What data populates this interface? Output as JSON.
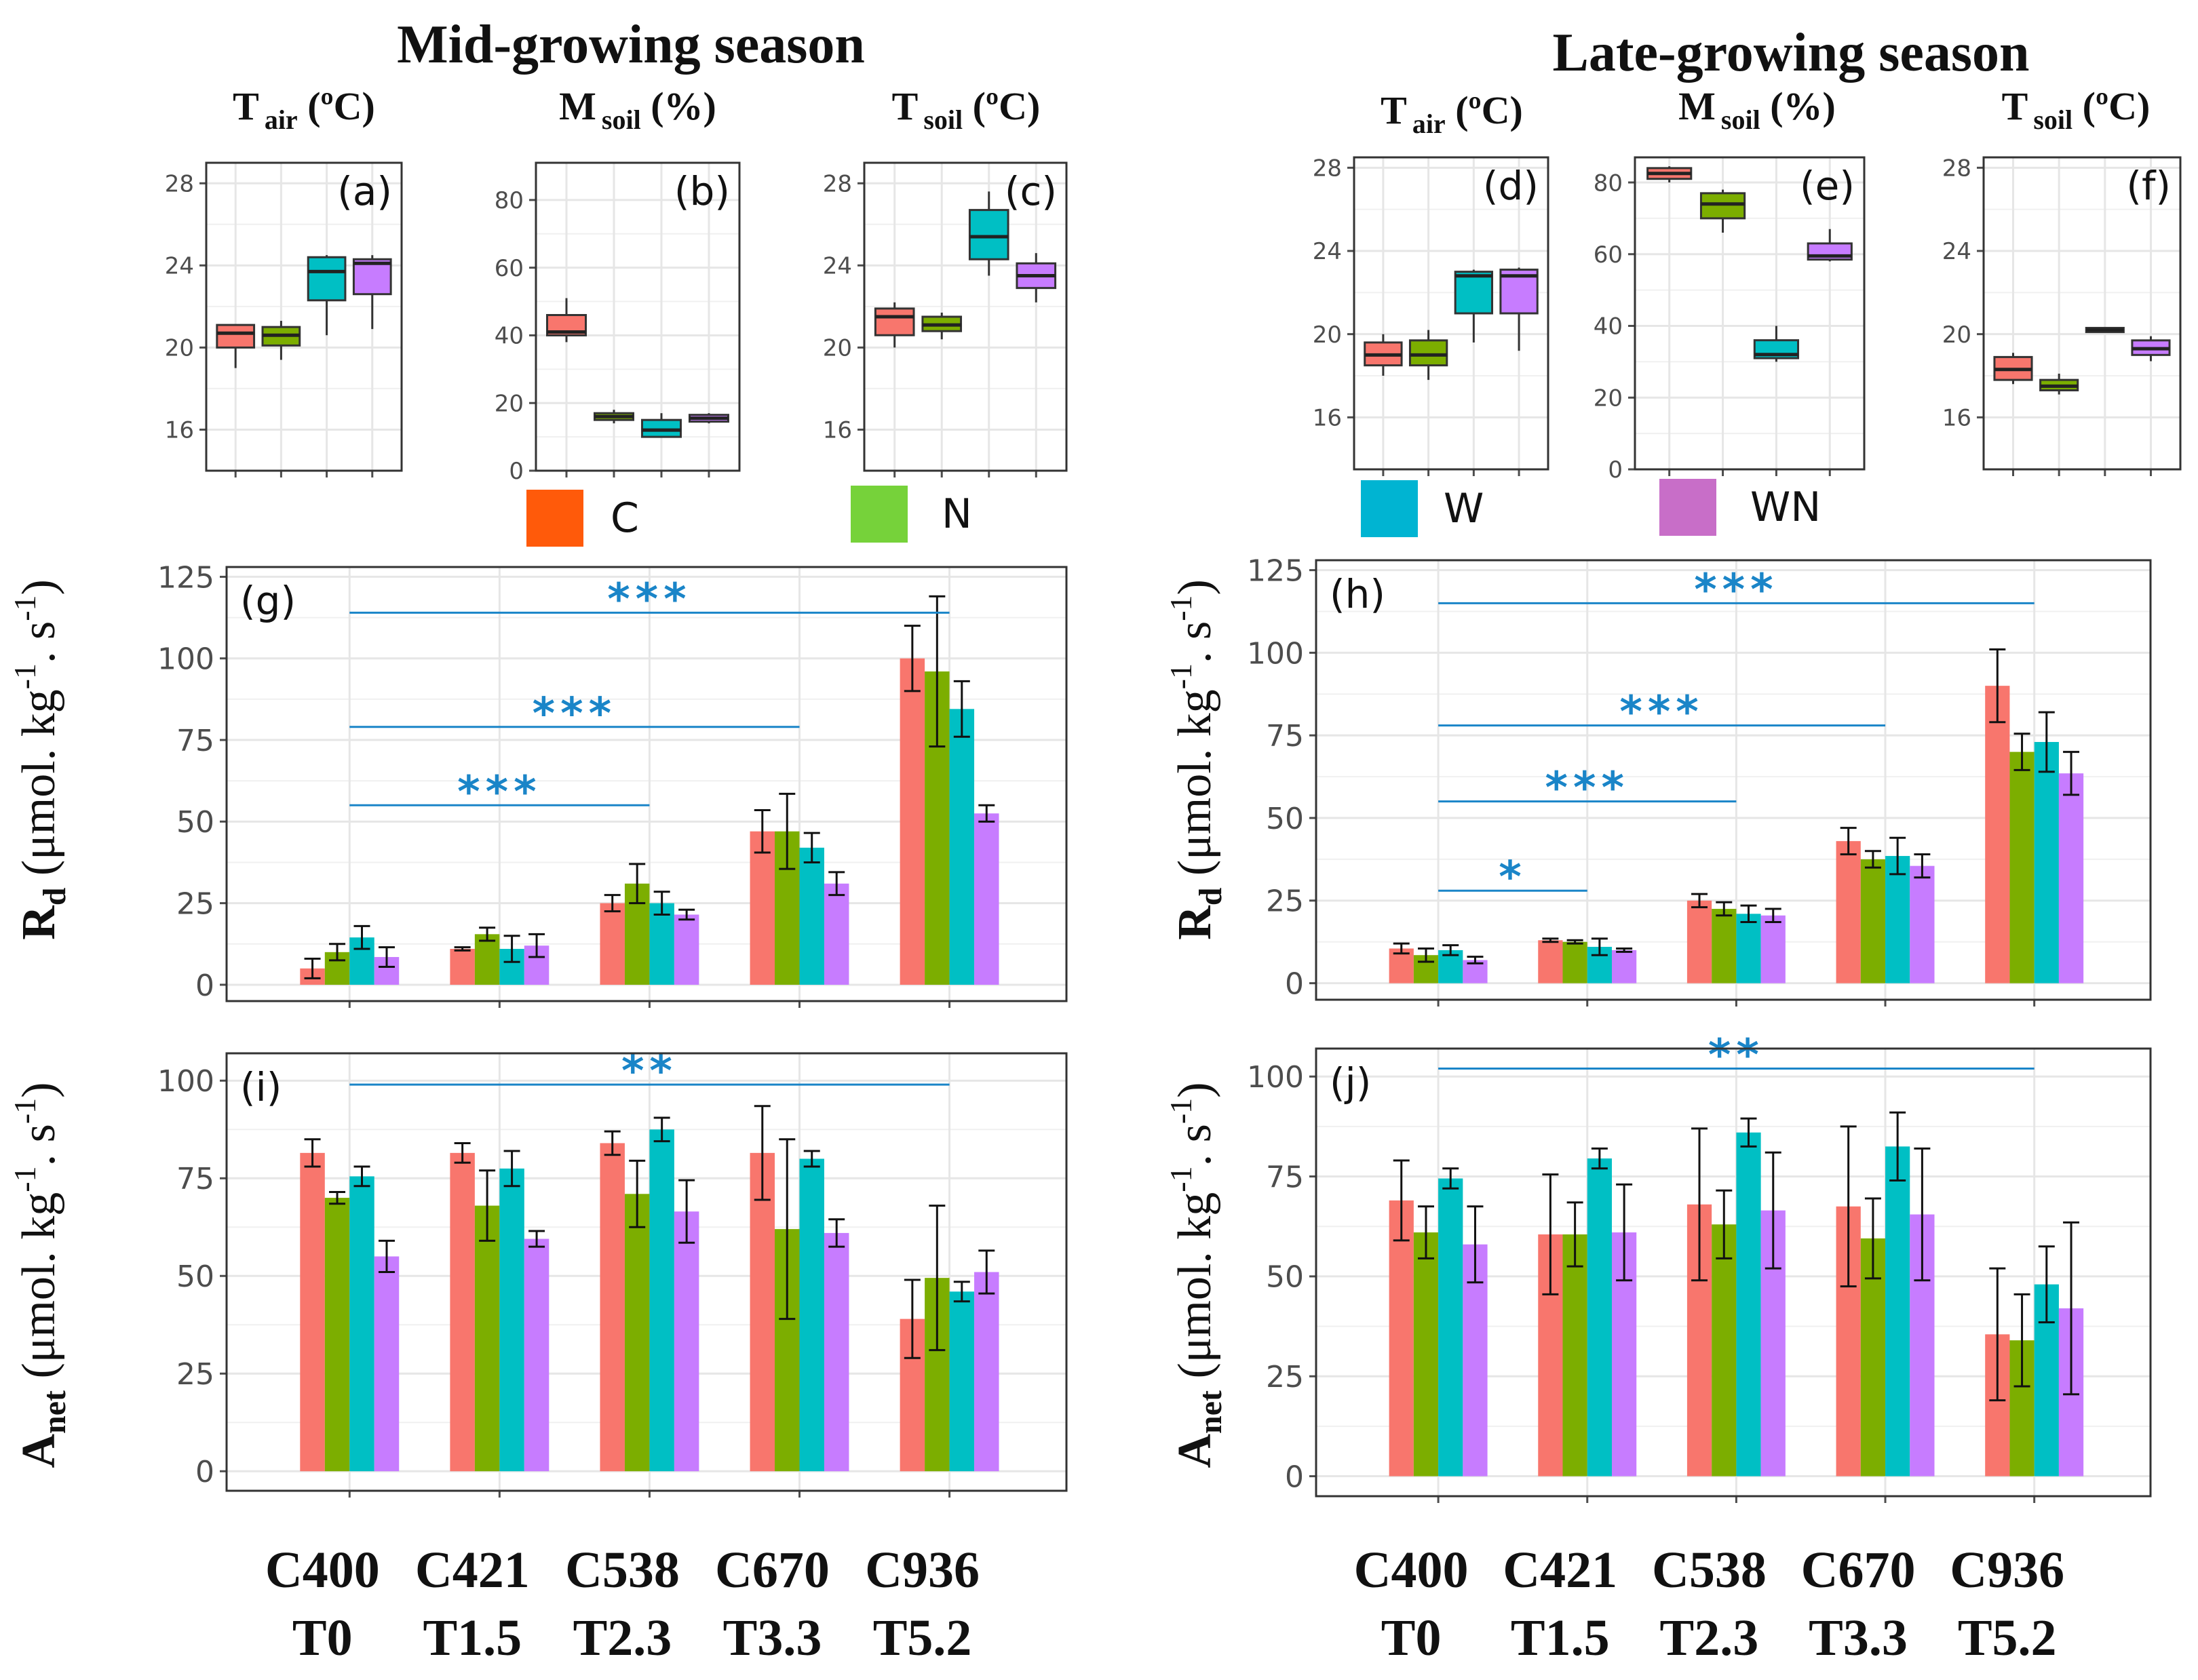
{
  "colors": {
    "C": "#f8766d",
    "N": "#7cae00",
    "W": "#00bfc4",
    "WN": "#c77cff",
    "legend_C": "#ff5a0a",
    "legend_N": "#76d23a",
    "legend_W": "#00b4d2",
    "legend_WN": "#c86ec8",
    "sig": "#1a85c8",
    "grid": "#e6e6e6",
    "axis": "#4d4d4d",
    "tick_label": "#4d4d4d"
  },
  "titles": {
    "mid": "Mid-growing season",
    "late": "Late-growing season"
  },
  "panel_headers": {
    "tair": {
      "main": "T",
      "sub": "air",
      "unit": " (ºC)"
    },
    "msoil": {
      "main": "M",
      "sub": "soil",
      "unit": " (%)"
    },
    "tsoil": {
      "main": "T",
      "sub": "soil",
      "unit": " (ºC)"
    }
  },
  "legend": [
    {
      "key": "C",
      "label": "C"
    },
    {
      "key": "N",
      "label": "N"
    },
    {
      "key": "W",
      "label": "W"
    },
    {
      "key": "WN",
      "label": "WN"
    }
  ],
  "y_labels": {
    "rd": {
      "main": "R",
      "sub": "d",
      "rest": " (μmol. kg",
      "sup1": "-1",
      "mid": ". s",
      "sup2": "-1",
      "end": ")"
    },
    "anet": {
      "main": "A",
      "sub": "net",
      "rest": " (μmol. kg",
      "sup1": "-1",
      "mid": ". s",
      "sup2": "-1",
      "end": ")"
    }
  },
  "x_categories": [
    {
      "line1": "C400",
      "line2": "T0"
    },
    {
      "line1": "C421",
      "line2": "T1.5"
    },
    {
      "line1": "C538",
      "line2": "T2.3"
    },
    {
      "line1": "C670",
      "line2": "T3.3"
    },
    {
      "line1": "C936",
      "line2": "T5.2"
    }
  ],
  "chart_data": [
    {
      "id": "a",
      "type": "box",
      "label": "(a)",
      "ylim": [
        14,
        29
      ],
      "ticks": [
        16,
        20,
        24,
        28
      ],
      "series": [
        {
          "key": "C",
          "q1": 20.0,
          "median": 20.7,
          "q3": 21.1,
          "lo": 19.0,
          "hi": 21.1
        },
        {
          "key": "N",
          "q1": 20.1,
          "median": 20.6,
          "q3": 21.0,
          "lo": 19.4,
          "hi": 21.3
        },
        {
          "key": "W",
          "q1": 22.3,
          "median": 23.7,
          "q3": 24.4,
          "lo": 20.6,
          "hi": 24.5
        },
        {
          "key": "WN",
          "q1": 22.6,
          "median": 24.1,
          "q3": 24.3,
          "lo": 20.9,
          "hi": 24.5
        }
      ]
    },
    {
      "id": "b",
      "type": "box",
      "label": "(b)",
      "ylim": [
        0,
        91
      ],
      "ticks": [
        0,
        20,
        40,
        60,
        80
      ],
      "series": [
        {
          "key": "C",
          "q1": 40,
          "median": 41,
          "q3": 46,
          "lo": 38,
          "hi": 51
        },
        {
          "key": "N",
          "q1": 15,
          "median": 16,
          "q3": 17,
          "lo": 14,
          "hi": 18
        },
        {
          "key": "W",
          "q1": 10,
          "median": 12,
          "q3": 15,
          "lo": 10,
          "hi": 17
        },
        {
          "key": "WN",
          "q1": 14.5,
          "median": 15.5,
          "q3": 16.5,
          "lo": 14,
          "hi": 17
        }
      ]
    },
    {
      "id": "c",
      "type": "box",
      "label": "(c)",
      "ylim": [
        14,
        29
      ],
      "ticks": [
        16,
        20,
        24,
        28
      ],
      "series": [
        {
          "key": "C",
          "q1": 20.6,
          "median": 21.5,
          "q3": 21.9,
          "lo": 20.0,
          "hi": 22.2
        },
        {
          "key": "N",
          "q1": 20.8,
          "median": 21.1,
          "q3": 21.5,
          "lo": 20.4,
          "hi": 21.7
        },
        {
          "key": "W",
          "q1": 24.3,
          "median": 25.4,
          "q3": 26.7,
          "lo": 23.5,
          "hi": 27.6
        },
        {
          "key": "WN",
          "q1": 22.9,
          "median": 23.5,
          "q3": 24.1,
          "lo": 22.2,
          "hi": 24.6
        }
      ]
    },
    {
      "id": "d",
      "type": "box",
      "label": "(d)",
      "ylim": [
        13.5,
        28.5
      ],
      "ticks": [
        16,
        20,
        24,
        28
      ],
      "series": [
        {
          "key": "C",
          "q1": 18.5,
          "median": 19.0,
          "q3": 19.6,
          "lo": 18.0,
          "hi": 20.0
        },
        {
          "key": "N",
          "q1": 18.5,
          "median": 19.0,
          "q3": 19.7,
          "lo": 17.8,
          "hi": 20.2
        },
        {
          "key": "W",
          "q1": 21.0,
          "median": 22.8,
          "q3": 23.0,
          "lo": 19.6,
          "hi": 23.1
        },
        {
          "key": "WN",
          "q1": 21.0,
          "median": 22.8,
          "q3": 23.1,
          "lo": 19.2,
          "hi": 23.2
        }
      ]
    },
    {
      "id": "e",
      "type": "box",
      "label": "(e)",
      "ylim": [
        0,
        87
      ],
      "ticks": [
        0,
        20,
        40,
        60,
        80
      ],
      "series": [
        {
          "key": "C",
          "q1": 81,
          "median": 82.5,
          "q3": 84,
          "lo": 80,
          "hi": 84.5
        },
        {
          "key": "N",
          "q1": 70,
          "median": 74,
          "q3": 77,
          "lo": 66,
          "hi": 78
        },
        {
          "key": "W",
          "q1": 31,
          "median": 32,
          "q3": 36,
          "lo": 30,
          "hi": 40
        },
        {
          "key": "WN",
          "q1": 58.5,
          "median": 59.5,
          "q3": 63,
          "lo": 58,
          "hi": 67
        }
      ]
    },
    {
      "id": "f",
      "type": "box",
      "label": "(f)",
      "ylim": [
        13.5,
        28.5
      ],
      "ticks": [
        16,
        20,
        24,
        28
      ],
      "series": [
        {
          "key": "C",
          "q1": 17.8,
          "median": 18.3,
          "q3": 18.9,
          "lo": 17.6,
          "hi": 19.1
        },
        {
          "key": "N",
          "q1": 17.3,
          "median": 17.5,
          "q3": 17.8,
          "lo": 17.1,
          "hi": 18.1
        },
        {
          "key": "W",
          "q1": 20.1,
          "median": 20.2,
          "q3": 20.3,
          "lo": 20.1,
          "hi": 20.3
        },
        {
          "key": "WN",
          "q1": 19.0,
          "median": 19.3,
          "q3": 19.7,
          "lo": 18.7,
          "hi": 19.9
        }
      ]
    },
    {
      "id": "g",
      "type": "bar",
      "label": "(g)",
      "ylim": [
        -5,
        128
      ],
      "ticks": [
        0,
        25,
        50,
        75,
        100,
        125
      ],
      "categories": [
        "C400 T0",
        "C421 T1.5",
        "C538 T2.3",
        "C670 T3.3",
        "C936 T5.2"
      ],
      "series": [
        {
          "key": "C",
          "values": [
            5,
            11,
            25,
            47,
            100
          ],
          "errors": [
            3,
            0.5,
            2.5,
            6.5,
            10
          ]
        },
        {
          "key": "N",
          "values": [
            10,
            15.5,
            31,
            47,
            96
          ],
          "errors": [
            2.5,
            2,
            6,
            11.5,
            23
          ]
        },
        {
          "key": "W",
          "values": [
            14.5,
            11,
            25,
            42,
            84.5
          ],
          "errors": [
            3.5,
            4,
            3.5,
            4.5,
            8.5
          ]
        },
        {
          "key": "WN",
          "values": [
            8.5,
            12,
            21.5,
            31,
            52.5
          ],
          "errors": [
            3,
            3.5,
            1.5,
            3.5,
            2.5
          ]
        }
      ],
      "significance": [
        {
          "label": "***",
          "y": 114,
          "from": 0,
          "to": 4
        },
        {
          "label": "***",
          "y": 79,
          "from": 0,
          "to": 3
        },
        {
          "label": "***",
          "y": 55,
          "from": 0,
          "to": 2
        }
      ]
    },
    {
      "id": "h",
      "type": "bar",
      "label": "(h)",
      "ylim": [
        -5,
        128
      ],
      "ticks": [
        0,
        25,
        50,
        75,
        100,
        125
      ],
      "categories": [
        "C400 T0",
        "C421 T1.5",
        "C538 T2.3",
        "C670 T3.3",
        "C936 T5.2"
      ],
      "series": [
        {
          "key": "C",
          "values": [
            10.5,
            13,
            25,
            43,
            90
          ],
          "errors": [
            1.5,
            0.5,
            2,
            4,
            11
          ]
        },
        {
          "key": "N",
          "values": [
            8.5,
            12.5,
            22.5,
            37.5,
            70
          ],
          "errors": [
            2,
            0.5,
            2,
            2.5,
            5.5
          ]
        },
        {
          "key": "W",
          "values": [
            10,
            11,
            21,
            38.5,
            73
          ],
          "errors": [
            1.5,
            2.5,
            2.5,
            5.5,
            9
          ]
        },
        {
          "key": "WN",
          "values": [
            7,
            10,
            20.5,
            35.5,
            63.5
          ],
          "errors": [
            1,
            0.5,
            2,
            3.5,
            6.5
          ]
        }
      ],
      "significance": [
        {
          "label": "***",
          "y": 115,
          "from": 0,
          "to": 4
        },
        {
          "label": "***",
          "y": 78,
          "from": 0,
          "to": 3
        },
        {
          "label": "***",
          "y": 55,
          "from": 0,
          "to": 2
        },
        {
          "label": "*",
          "y": 28,
          "from": 0,
          "to": 1
        }
      ]
    },
    {
      "id": "i",
      "type": "bar",
      "label": "(i)",
      "ylim": [
        -5,
        107
      ],
      "ticks": [
        0,
        25,
        50,
        75,
        100
      ],
      "categories": [
        "C400 T0",
        "C421 T1.5",
        "C538 T2.3",
        "C670 T3.3",
        "C936 T5.2"
      ],
      "series": [
        {
          "key": "C",
          "values": [
            81.5,
            81.5,
            84,
            81.5,
            39
          ],
          "errors": [
            3.5,
            2.5,
            3,
            12,
            10
          ]
        },
        {
          "key": "N",
          "values": [
            70,
            68,
            71,
            62,
            49.5
          ],
          "errors": [
            1.5,
            9,
            8.5,
            23,
            18.5
          ]
        },
        {
          "key": "W",
          "values": [
            75.5,
            77.5,
            87.5,
            80,
            46
          ],
          "errors": [
            2.5,
            4.5,
            3,
            2,
            2.5
          ]
        },
        {
          "key": "WN",
          "values": [
            55,
            59.5,
            66.5,
            61,
            51
          ],
          "errors": [
            4,
            2,
            8,
            3.5,
            5.5
          ]
        }
      ],
      "significance": [
        {
          "label": "**",
          "y": 99,
          "from": 0,
          "to": 4
        }
      ]
    },
    {
      "id": "j",
      "type": "bar",
      "label": "(j)",
      "ylim": [
        -5,
        107
      ],
      "ticks": [
        0,
        25,
        50,
        75,
        100
      ],
      "categories": [
        "C400 T0",
        "C421 T1.5",
        "C538 T2.3",
        "C670 T3.3",
        "C936 T5.2"
      ],
      "series": [
        {
          "key": "C",
          "values": [
            69,
            60.5,
            68,
            67.5,
            35.5
          ],
          "errors": [
            10,
            15,
            19,
            20,
            16.5
          ]
        },
        {
          "key": "N",
          "values": [
            61,
            60.5,
            63,
            59.5,
            34
          ],
          "errors": [
            6.5,
            8,
            8.5,
            10,
            11.5
          ]
        },
        {
          "key": "W",
          "values": [
            74.5,
            79.5,
            86,
            82.5,
            48
          ],
          "errors": [
            2.5,
            2.5,
            3.5,
            8.5,
            9.5
          ]
        },
        {
          "key": "WN",
          "values": [
            58,
            61,
            66.5,
            65.5,
            42
          ],
          "errors": [
            9.5,
            12,
            14.5,
            16.5,
            21.5
          ]
        }
      ],
      "significance": [
        {
          "label": "**",
          "y": 102,
          "from": 0,
          "to": 4
        }
      ]
    }
  ]
}
